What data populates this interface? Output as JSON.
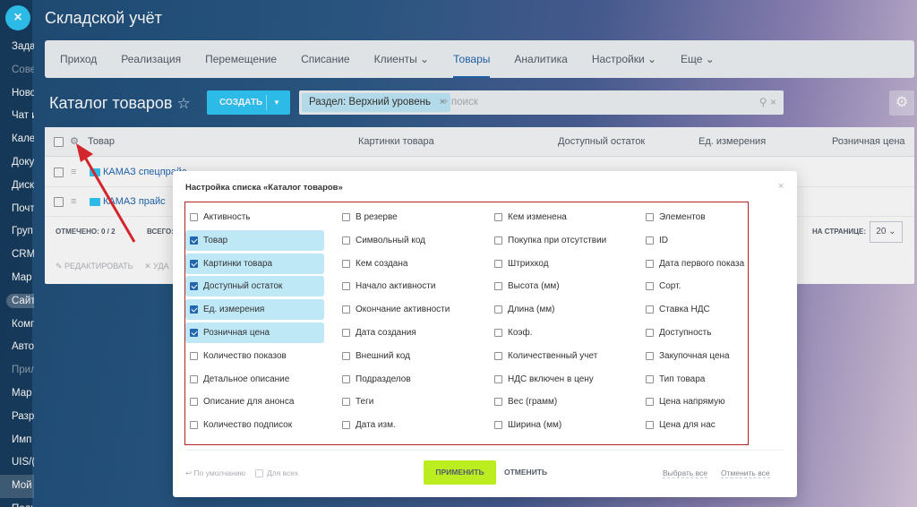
{
  "sidebar": {
    "close_glyph": "×",
    "items": [
      "Зада",
      "Сове",
      "Ново",
      "Чат и",
      "Кале",
      "Доку",
      "Диск",
      "Почт",
      "Груп",
      "CRM",
      "Мар",
      "Сайт",
      "Комг",
      "Авто",
      "Прил",
      "Мар",
      "Разр",
      "Имп",
      "UIS/(",
      "Мой",
      "Поди"
    ]
  },
  "app_title": "Складской учёт",
  "tabs": [
    "Приход",
    "Реализация",
    "Перемещение",
    "Списание",
    "Клиенты ⌄",
    "Товары",
    "Аналитика",
    "Настройки ⌄",
    "Еще ⌄"
  ],
  "page": {
    "title": "Каталог товаров",
    "star": "☆",
    "create_label": "СОЗДАТЬ",
    "create_arrow": "▼",
    "filter_chip": "Раздел: Верхний уровень",
    "chip_close": "×",
    "search_placeholder": "+ поиск",
    "search_icons": "⚲  ×",
    "settings_icon": "⚙"
  },
  "grid": {
    "header": {
      "gear": "⚙",
      "col_product": "Товар",
      "col_images": "Картинки товара",
      "col_stock": "Доступный остаток",
      "col_unit": "Ед. измерения",
      "col_price": "Розничная цена"
    },
    "rows": [
      "КАМАЗ спецпрайс",
      "КАМАЗ прайс"
    ],
    "marked": "ОТМЕЧЕНО: 0 / 2",
    "total": "ВСЕГО:",
    "per_page_label": "НА СТРАНИЦЕ:",
    "per_page_value": "20 ⌄",
    "edit_action": "✎ РЕДАКТИРОВАТЬ",
    "delete_action": "✕ УДА"
  },
  "modal": {
    "title": "Настройка списка «Каталог товаров»",
    "close": "×",
    "columns": [
      [
        {
          "label": "Активность",
          "checked": false
        },
        {
          "label": "Товар",
          "checked": true
        },
        {
          "label": "Картинки товара",
          "checked": true
        },
        {
          "label": "Доступный остаток",
          "checked": true
        },
        {
          "label": "Ед. измерения",
          "checked": true
        },
        {
          "label": "Розничная цена",
          "checked": true
        },
        {
          "label": "Количество показов",
          "checked": false
        },
        {
          "label": "Детальное описание",
          "checked": false
        },
        {
          "label": "Описание для анонса",
          "checked": false
        },
        {
          "label": "Количество подписок",
          "checked": false
        }
      ],
      [
        {
          "label": "В резерве",
          "checked": false
        },
        {
          "label": "Символьный код",
          "checked": false
        },
        {
          "label": "Кем создана",
          "checked": false
        },
        {
          "label": "Начало активности",
          "checked": false
        },
        {
          "label": "Окончание активности",
          "checked": false
        },
        {
          "label": "Дата создания",
          "checked": false
        },
        {
          "label": "Внешний код",
          "checked": false
        },
        {
          "label": "Подразделов",
          "checked": false
        },
        {
          "label": "Теги",
          "checked": false
        },
        {
          "label": "Дата изм.",
          "checked": false
        }
      ],
      [
        {
          "label": "Кем изменена",
          "checked": false
        },
        {
          "label": "Покупка при отсутствии",
          "checked": false
        },
        {
          "label": "Штрихкод",
          "checked": false
        },
        {
          "label": "Высота (мм)",
          "checked": false
        },
        {
          "label": "Длина (мм)",
          "checked": false
        },
        {
          "label": "Коэф.",
          "checked": false
        },
        {
          "label": "Количественный учет",
          "checked": false
        },
        {
          "label": "НДС включен в цену",
          "checked": false
        },
        {
          "label": "Вес (грамм)",
          "checked": false
        },
        {
          "label": "Ширина (мм)",
          "checked": false
        }
      ],
      [
        {
          "label": "Элементов",
          "checked": false
        },
        {
          "label": "ID",
          "checked": false
        },
        {
          "label": "Дата первого показа",
          "checked": false
        },
        {
          "label": "Сорт.",
          "checked": false
        },
        {
          "label": "Ставка НДС",
          "checked": false
        },
        {
          "label": "Доступность",
          "checked": false
        },
        {
          "label": "Закупочная цена",
          "checked": false
        },
        {
          "label": "Тип товара",
          "checked": false
        },
        {
          "label": "Цена напрямую",
          "checked": false
        },
        {
          "label": "Цена для нас",
          "checked": false
        }
      ]
    ],
    "default_link": "↩ По умолчанию",
    "for_all": "Для всех",
    "apply": "ПРИМЕНИТЬ",
    "cancel": "ОТМЕНИТЬ",
    "select_all": "Выбрать все",
    "cancel_all": "Отменить все"
  },
  "colors": {
    "accent": "#2fc6f6",
    "apply_green": "#bbed21",
    "highlight_border": "#b12225",
    "checked_row": "#bfe8f7"
  }
}
